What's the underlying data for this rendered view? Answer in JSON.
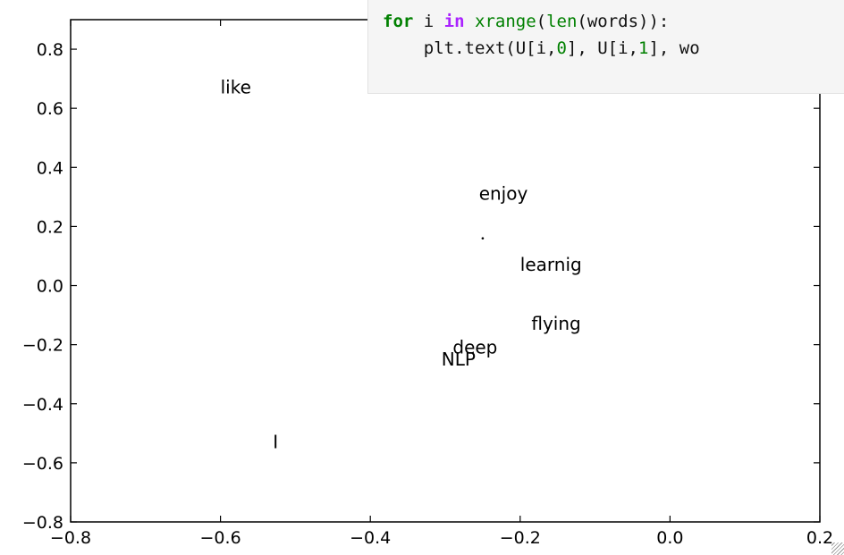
{
  "code": {
    "line1": {
      "kw_for": "for",
      "var": " i ",
      "kw_in": "in",
      "sp": " ",
      "fn_xrange": "xrange",
      "p1": "(",
      "fn_len": "len",
      "rest": "(words)):"
    },
    "line2": {
      "a": "    plt.text(U[i,",
      "n0": "0",
      "b": "], U[i,",
      "n1": "1",
      "c": "], wo"
    }
  },
  "chart_data": {
    "type": "scatter",
    "title": "",
    "xlabel": "",
    "ylabel": "",
    "xlim": [
      -0.8,
      0.2
    ],
    "ylim": [
      -0.8,
      0.9
    ],
    "xticks": [
      "−0.8",
      "−0.6",
      "−0.4",
      "−0.2",
      "0.0",
      "0.2"
    ],
    "xtick_values": [
      -0.8,
      -0.6,
      -0.4,
      -0.2,
      0.0,
      0.2
    ],
    "yticks": [
      "−0.8",
      "−0.6",
      "−0.4",
      "−0.2",
      "0.0",
      "0.2",
      "0.4",
      "0.6",
      "0.8"
    ],
    "ytick_values": [
      -0.8,
      -0.6,
      -0.4,
      -0.2,
      0.0,
      0.2,
      0.4,
      0.6,
      0.8
    ],
    "grid": false,
    "points": [
      {
        "word": "like",
        "x": -0.6,
        "y": 0.65
      },
      {
        "word": "enjoy",
        "x": -0.255,
        "y": 0.29
      },
      {
        "word": "learnig",
        "x": -0.2,
        "y": 0.05
      },
      {
        "word": "flying",
        "x": -0.185,
        "y": -0.15
      },
      {
        "word": "deep",
        "x": -0.29,
        "y": -0.23
      },
      {
        "word": "NLP",
        "x": -0.305,
        "y": -0.27
      },
      {
        "word": "I",
        "x": -0.53,
        "y": -0.55
      }
    ],
    "dot": {
      "x": -0.25,
      "y": 0.16
    }
  }
}
